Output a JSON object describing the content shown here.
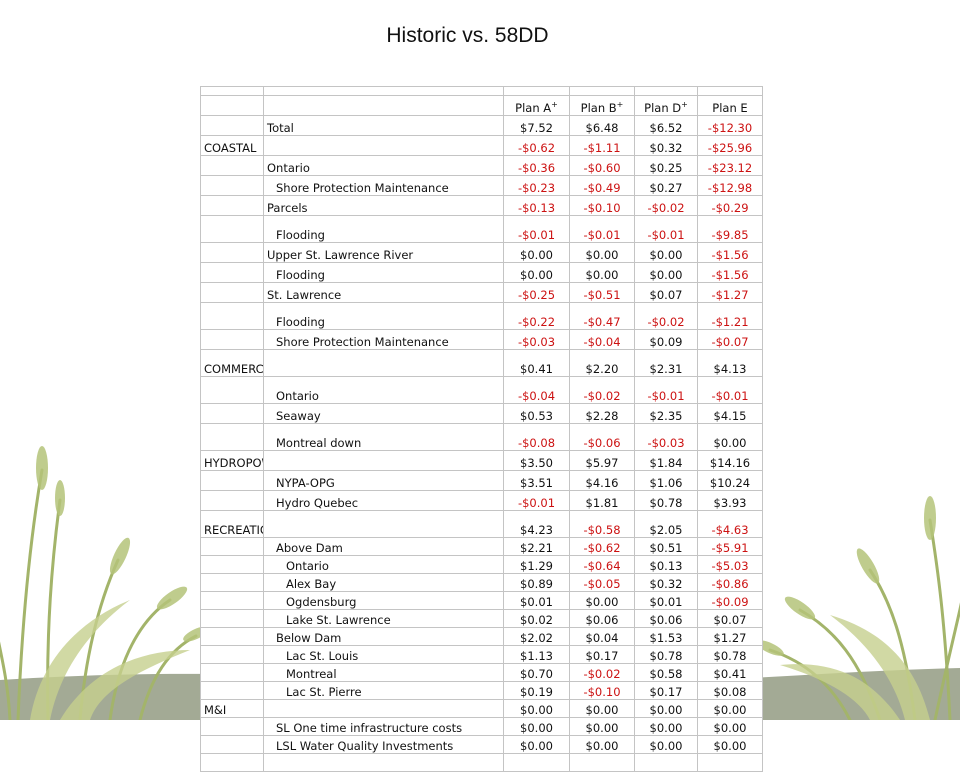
{
  "title": "Historic vs. 58DD",
  "headers": [
    "Plan A",
    "Plan B",
    "Plan D",
    "Plan E"
  ],
  "header_marks": [
    "+",
    "+",
    "+",
    ""
  ],
  "rows": [
    {
      "c1": "",
      "c2": "Total",
      "v": [
        "$7.52",
        "$6.48",
        "$6.52",
        "-$12.30"
      ],
      "h": "normal",
      "ind": 0
    },
    {
      "c1": "COASTAL",
      "c2": "",
      "v": [
        "-$0.62",
        "-$1.11",
        "$0.32",
        "-$25.96"
      ],
      "h": "normal",
      "ind": 0
    },
    {
      "c1": "",
      "c2": "Ontario",
      "v": [
        "-$0.36",
        "-$0.60",
        "$0.25",
        "-$23.12"
      ],
      "h": "normal",
      "ind": 0
    },
    {
      "c1": "",
      "c2": "Shore Protection Maintenance",
      "v": [
        "-$0.23",
        "-$0.49",
        "$0.27",
        "-$12.98"
      ],
      "h": "normal",
      "ind": 1
    },
    {
      "c1": "",
      "c2": "Parcels",
      "v": [
        "-$0.13",
        "-$0.10",
        "-$0.02",
        "-$0.29"
      ],
      "h": "normal",
      "ind": 0
    },
    {
      "c1": "",
      "c2": "Flooding",
      "v": [
        "-$0.01",
        "-$0.01",
        "-$0.01",
        "-$9.85"
      ],
      "h": "tall",
      "ind": 1
    },
    {
      "c1": "",
      "c2": "Upper St. Lawrence River",
      "v": [
        "$0.00",
        "$0.00",
        "$0.00",
        "-$1.56"
      ],
      "h": "normal",
      "ind": 0
    },
    {
      "c1": "",
      "c2": "Flooding",
      "v": [
        "$0.00",
        "$0.00",
        "$0.00",
        "-$1.56"
      ],
      "h": "normal",
      "ind": 1
    },
    {
      "c1": "",
      "c2": "St. Lawrence",
      "v": [
        "-$0.25",
        "-$0.51",
        "$0.07",
        "-$1.27"
      ],
      "h": "normal",
      "ind": 0
    },
    {
      "c1": "",
      "c2": "Flooding",
      "v": [
        "-$0.22",
        "-$0.47",
        "-$0.02",
        "-$1.21"
      ],
      "h": "tall",
      "ind": 1
    },
    {
      "c1": "",
      "c2": "Shore Protection Maintenance",
      "v": [
        "-$0.03",
        "-$0.04",
        "$0.09",
        "-$0.07"
      ],
      "h": "normal",
      "ind": 1
    },
    {
      "c1": "COMMERCIAL NAVIGATION",
      "c2": "",
      "v": [
        "$0.41",
        "$2.20",
        "$2.31",
        "$4.13"
      ],
      "h": "tall",
      "ind": 0
    },
    {
      "c1": "",
      "c2": "Ontario",
      "v": [
        "-$0.04",
        "-$0.02",
        "-$0.01",
        "-$0.01"
      ],
      "h": "tall",
      "ind": 1
    },
    {
      "c1": "",
      "c2": "Seaway",
      "v": [
        "$0.53",
        "$2.28",
        "$2.35",
        "$4.15"
      ],
      "h": "normal",
      "ind": 1
    },
    {
      "c1": "",
      "c2": "Montreal down",
      "v": [
        "-$0.08",
        "-$0.06",
        "-$0.03",
        "$0.00"
      ],
      "h": "tall",
      "ind": 1
    },
    {
      "c1": "HYDROPOWER",
      "c2": "",
      "v": [
        "$3.50",
        "$5.97",
        "$1.84",
        "$14.16"
      ],
      "h": "normal",
      "ind": 0
    },
    {
      "c1": "",
      "c2": "NYPA-OPG",
      "v": [
        "$3.51",
        "$4.16",
        "$1.06",
        "$10.24"
      ],
      "h": "normal",
      "ind": 1
    },
    {
      "c1": "",
      "c2": "Hydro Quebec",
      "v": [
        "-$0.01",
        "$1.81",
        "$0.78",
        "$3.93"
      ],
      "h": "normal",
      "ind": 1
    },
    {
      "c1": "RECREATIONAL BOATING",
      "c2": "",
      "v": [
        "$4.23",
        "-$0.58",
        "$2.05",
        "-$4.63"
      ],
      "h": "tall",
      "ind": 0
    },
    {
      "c1": "",
      "c2": "Above Dam",
      "v": [
        "$2.21",
        "-$0.62",
        "$0.51",
        "-$5.91"
      ],
      "h": "short",
      "ind": 1
    },
    {
      "c1": "",
      "c2": "Ontario",
      "v": [
        "$1.29",
        "-$0.64",
        "$0.13",
        "-$5.03"
      ],
      "h": "short",
      "ind": 2
    },
    {
      "c1": "",
      "c2": "Alex Bay",
      "v": [
        "$0.89",
        "-$0.05",
        "$0.32",
        "-$0.86"
      ],
      "h": "short",
      "ind": 2
    },
    {
      "c1": "",
      "c2": "Ogdensburg",
      "v": [
        "$0.01",
        "$0.00",
        "$0.01",
        "-$0.09"
      ],
      "h": "short",
      "ind": 2
    },
    {
      "c1": "",
      "c2": "Lake St. Lawrence",
      "v": [
        "$0.02",
        "$0.06",
        "$0.06",
        "$0.07"
      ],
      "h": "short",
      "ind": 2
    },
    {
      "c1": "",
      "c2": "Below Dam",
      "v": [
        "$2.02",
        "$0.04",
        "$1.53",
        "$1.27"
      ],
      "h": "short",
      "ind": 1
    },
    {
      "c1": "",
      "c2": "Lac St. Louis",
      "v": [
        "$1.13",
        "$0.17",
        "$0.78",
        "$0.78"
      ],
      "h": "short",
      "ind": 2
    },
    {
      "c1": "",
      "c2": "Montreal",
      "v": [
        "$0.70",
        "-$0.02",
        "$0.58",
        "$0.41"
      ],
      "h": "short",
      "ind": 2
    },
    {
      "c1": "",
      "c2": "Lac St. Pierre",
      "v": [
        "$0.19",
        "-$0.10",
        "$0.17",
        "$0.08"
      ],
      "h": "short",
      "ind": 2
    },
    {
      "c1": "M&I",
      "c2": "",
      "v": [
        "$0.00",
        "$0.00",
        "$0.00",
        "$0.00"
      ],
      "h": "short",
      "ind": 0
    },
    {
      "c1": "",
      "c2": "SL One time infrastructure costs",
      "v": [
        "$0.00",
        "$0.00",
        "$0.00",
        "$0.00"
      ],
      "h": "short",
      "ind": 1
    },
    {
      "c1": "",
      "c2": "LSL Water Quality Investments",
      "v": [
        "$0.00",
        "$0.00",
        "$0.00",
        "$0.00"
      ],
      "h": "short",
      "ind": 1
    }
  ],
  "colors": {
    "negative": "#cc1111",
    "positive": "#111111",
    "grid": "#c4c4c4",
    "grass": "#a3b46a",
    "ground": "#a3aa95"
  }
}
